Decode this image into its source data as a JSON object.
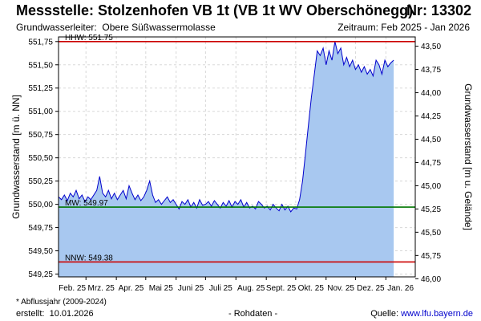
{
  "header": {
    "title": "Messstelle: Stolzenhofen VB 1t (VB 1t WV Oberschönegg)",
    "nr": "Nr: 13302",
    "aquifer_label": "Grundwasserleiter:",
    "aquifer": "Obere Süßwassermolasse",
    "period_label": "Zeitraum:",
    "period": "Feb 2025 - Jan 2026"
  },
  "footer": {
    "footnote": "* Abflussjahr (2009-2024)",
    "created_label": "erstellt:",
    "created": "10.01.2026",
    "rohdaten": "- Rohdaten -",
    "source_label": "Quelle:",
    "source": "www.lfu.bayern.de"
  },
  "colors": {
    "fill": "#a8c8f0",
    "line": "#0000cc",
    "hhw": "#cc0000",
    "mw": "#007700",
    "nnw": "#cc0000",
    "grid": "#d8d8d8"
  },
  "chart_data": {
    "type": "area",
    "ylabel": "Grundwasserstand [m ü. NN]",
    "ylabel_right": "Grundwasserstand [m u. Gelände]",
    "ylim": [
      549.22,
      551.8
    ],
    "yticks": [
      "551,75",
      "551,50",
      "551,25",
      "551,00",
      "550,75",
      "550,50",
      "550,25",
      "550,00",
      "549,75",
      "549,50",
      "549,25"
    ],
    "ytick_values": [
      551.75,
      551.5,
      551.25,
      551.0,
      550.75,
      550.5,
      550.25,
      550.0,
      549.75,
      549.5,
      549.25
    ],
    "yticks_right": [
      "43,50",
      "43,75",
      "44,00",
      "44,25",
      "44,50",
      "44,75",
      "45,00",
      "45,25",
      "45,50",
      "45,75",
      "46,00"
    ],
    "ytick_right_values": [
      43.5,
      43.75,
      44.0,
      44.25,
      44.5,
      44.75,
      45.0,
      45.25,
      45.5,
      45.75,
      46.0
    ],
    "right_axis_offset": 595.2,
    "xticks": [
      "Feb. 25",
      "Mrz. 25",
      "Apr. 25",
      "Mai 25",
      "Juni 25",
      "Juli 25",
      "Aug. 25",
      "Sept. 25",
      "Okt. 25",
      "Nov. 25",
      "Dez. 25",
      "Jan. 26"
    ],
    "x_range": [
      "2025-02-01",
      "2026-01-31"
    ],
    "grid": true,
    "reference_lines": [
      {
        "label": "HHW: 551.75",
        "value": 551.75,
        "color": "#cc0000"
      },
      {
        "label": "MW: 549.97",
        "value": 549.97,
        "color": "#007700"
      },
      {
        "label": "NNW: 549.38",
        "value": 549.38,
        "color": "#cc0000"
      }
    ],
    "series": [
      {
        "dates": [
          "2025-02-01",
          "2025-02-04",
          "2025-02-07",
          "2025-02-10",
          "2025-02-13",
          "2025-02-16",
          "2025-02-19",
          "2025-02-22",
          "2025-02-25",
          "2025-02-28",
          "2025-03-03",
          "2025-03-06",
          "2025-03-09",
          "2025-03-12",
          "2025-03-15",
          "2025-03-18",
          "2025-03-21",
          "2025-03-24",
          "2025-03-27",
          "2025-03-30",
          "2025-04-02",
          "2025-04-05",
          "2025-04-08",
          "2025-04-11",
          "2025-04-14",
          "2025-04-17",
          "2025-04-20",
          "2025-04-23",
          "2025-04-26",
          "2025-04-29",
          "2025-05-02",
          "2025-05-05",
          "2025-05-08",
          "2025-05-11",
          "2025-05-14",
          "2025-05-17",
          "2025-05-20",
          "2025-05-23",
          "2025-05-26",
          "2025-05-29",
          "2025-06-01",
          "2025-06-04",
          "2025-06-07",
          "2025-06-10",
          "2025-06-13",
          "2025-06-16",
          "2025-06-19",
          "2025-06-22",
          "2025-06-25",
          "2025-06-28",
          "2025-07-01",
          "2025-07-04",
          "2025-07-07",
          "2025-07-10",
          "2025-07-13",
          "2025-07-16",
          "2025-07-19",
          "2025-07-22",
          "2025-07-25",
          "2025-07-28",
          "2025-07-31",
          "2025-08-03",
          "2025-08-06",
          "2025-08-09",
          "2025-08-12",
          "2025-08-15",
          "2025-08-18",
          "2025-08-21",
          "2025-08-24",
          "2025-08-27",
          "2025-08-30",
          "2025-09-02",
          "2025-09-05",
          "2025-09-08",
          "2025-09-11",
          "2025-09-14",
          "2025-09-17",
          "2025-09-20",
          "2025-09-23",
          "2025-09-26",
          "2025-09-29",
          "2025-10-02",
          "2025-10-05",
          "2025-10-08",
          "2025-10-11",
          "2025-10-14",
          "2025-10-17",
          "2025-10-20",
          "2025-10-23",
          "2025-10-26",
          "2025-10-29",
          "2025-11-01",
          "2025-11-04",
          "2025-11-07",
          "2025-11-10",
          "2025-11-13",
          "2025-11-16",
          "2025-11-19",
          "2025-11-22",
          "2025-11-25",
          "2025-11-28",
          "2025-12-01",
          "2025-12-04",
          "2025-12-07",
          "2025-12-10",
          "2025-12-13",
          "2025-12-16",
          "2025-12-19",
          "2025-12-22",
          "2025-12-25",
          "2025-12-28",
          "2025-12-31",
          "2026-01-03",
          "2026-01-06",
          "2026-01-09"
        ],
        "values": [
          550.08,
          550.05,
          550.1,
          550.04,
          550.12,
          550.08,
          550.15,
          550.06,
          550.1,
          550.03,
          550.08,
          550.05,
          550.1,
          550.15,
          550.3,
          550.12,
          550.08,
          550.15,
          550.06,
          550.12,
          550.05,
          550.1,
          550.15,
          550.06,
          550.2,
          550.12,
          550.05,
          550.1,
          550.04,
          550.08,
          550.15,
          550.25,
          550.1,
          550.02,
          550.05,
          550.0,
          550.04,
          550.08,
          550.02,
          550.05,
          550.0,
          549.95,
          550.03,
          550.0,
          550.05,
          549.97,
          550.02,
          549.96,
          550.05,
          549.99,
          550.0,
          550.03,
          549.98,
          550.04,
          550.0,
          549.96,
          550.02,
          549.98,
          550.04,
          549.97,
          550.03,
          550.0,
          550.05,
          549.97,
          550.02,
          549.96,
          549.98,
          549.95,
          550.03,
          550.0,
          549.96,
          549.98,
          549.94,
          550.0,
          549.96,
          549.93,
          550.0,
          549.94,
          549.98,
          549.92,
          549.96,
          549.95,
          550.05,
          550.25,
          550.55,
          550.85,
          551.15,
          551.4,
          551.65,
          551.6,
          551.68,
          551.5,
          551.65,
          551.55,
          551.75,
          551.62,
          551.68,
          551.5,
          551.58,
          551.48,
          551.55,
          551.45,
          551.5,
          551.42,
          551.48,
          551.4,
          551.45,
          551.38,
          551.55,
          551.5,
          551.4,
          551.55,
          551.48,
          551.52,
          551.55
        ]
      }
    ]
  }
}
